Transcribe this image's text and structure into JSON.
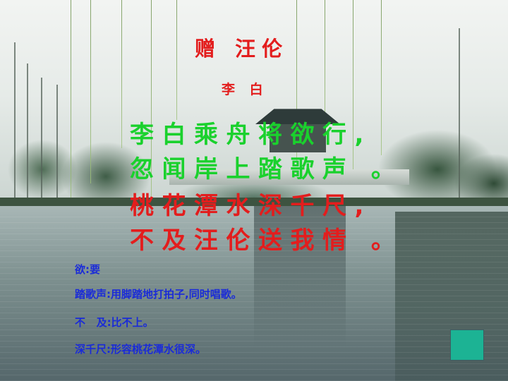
{
  "poem": {
    "title": "赠 汪伦",
    "author": "李 白",
    "lines": [
      "李白乘舟将欲行,",
      "忽闻岸上踏歌声 。",
      "桃花潭水深千尺,",
      "不及汪伦送我情 。"
    ]
  },
  "notes": [
    "欲:要",
    "踏歌声:用脚踏地打拍子,同时唱歌。",
    "不   及:比不上。",
    "深千尺:形容桃花潭水很深。"
  ],
  "colors": {
    "title": "#e31d1d",
    "green_lines": "#1ad12d",
    "red_lines": "#e31d1d",
    "notes": "#1a2bd8",
    "action_square": "#1cb394"
  }
}
